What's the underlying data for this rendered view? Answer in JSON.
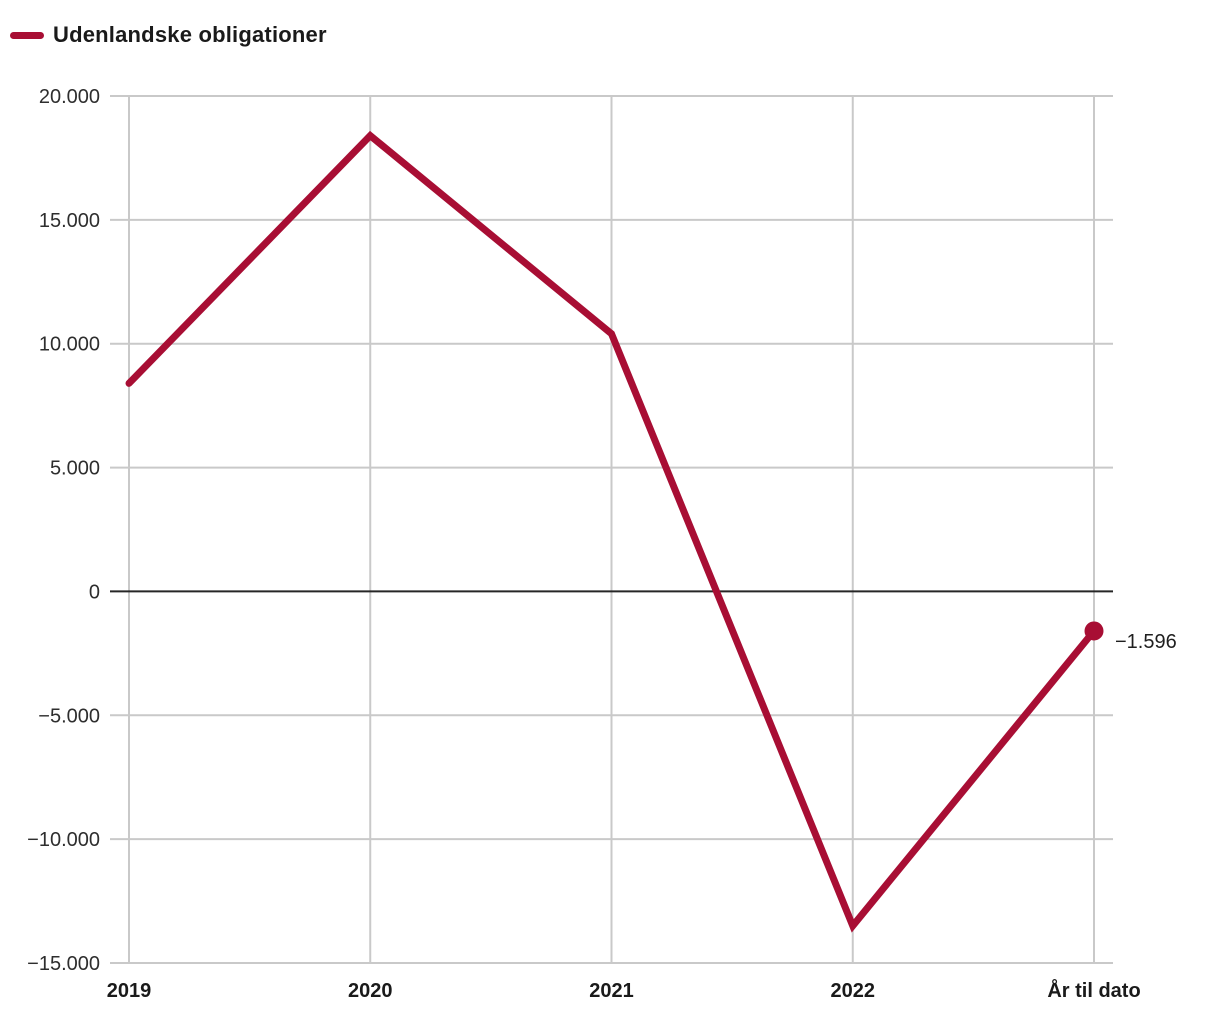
{
  "legend": {
    "label": "Udenlandske obligationer"
  },
  "colors": {
    "line": "#a80e34",
    "grid": "#c9c9c9",
    "zero_line": "#262626",
    "text": "#1f1f1f"
  },
  "chart_data": {
    "type": "line",
    "categories": [
      "2019",
      "2020",
      "2021",
      "2022",
      "År til dato"
    ],
    "series": [
      {
        "name": "Udenlandske obligationer",
        "color": "#a80e34",
        "values": [
          8400,
          18400,
          10400,
          -13500,
          -1596
        ]
      }
    ],
    "ylim": [
      -15000,
      20000
    ],
    "y_ticks": [
      20000,
      15000,
      10000,
      5000,
      0,
      -5000,
      -10000,
      -15000
    ],
    "y_tick_labels": [
      "20.000",
      "15.000",
      "10.000",
      "5.000",
      "0",
      "−5.000",
      "−10.000",
      "−15.000"
    ],
    "grid": true,
    "legend_position": "top-left",
    "end_point_label": "−1.596",
    "end_point_marker": true
  }
}
